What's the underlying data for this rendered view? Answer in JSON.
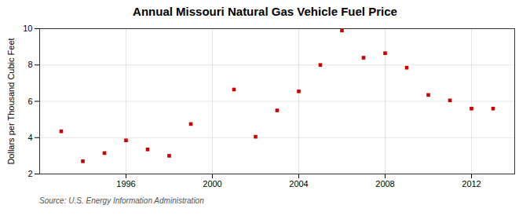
{
  "chart_data": {
    "type": "scatter",
    "title": "Annual Missouri Natural Gas Vehicle Fuel Price",
    "ylabel": "Dollars per Thousand Cubic Feet",
    "annotations": [
      "Source: U.S. Energy Information Administration"
    ],
    "x": [
      1993,
      1994,
      1995,
      1996,
      1997,
      1998,
      1999,
      2001,
      2002,
      2003,
      2004,
      2005,
      2006,
      2007,
      2008,
      2009,
      2010,
      2011,
      2012,
      2013
    ],
    "values": [
      4.35,
      2.7,
      3.15,
      3.85,
      3.35,
      3.0,
      4.75,
      6.65,
      4.05,
      5.5,
      6.55,
      8.0,
      9.9,
      8.4,
      8.65,
      7.85,
      6.35,
      6.05,
      5.6,
      5.6
    ],
    "color": "#cc0000",
    "marker": "square",
    "xlim": [
      1992,
      2014
    ],
    "ylim": [
      2,
      10
    ],
    "xticks": [
      1996,
      2000,
      2004,
      2008,
      2012
    ],
    "yticks": [
      2,
      4,
      6,
      8,
      10
    ],
    "grid": true
  }
}
